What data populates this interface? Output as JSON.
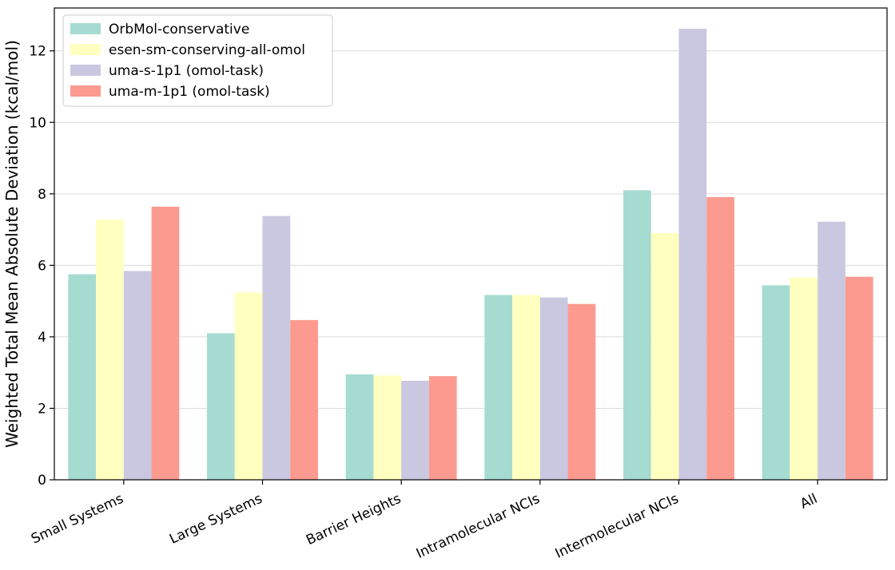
{
  "chart_data": {
    "type": "bar",
    "ylabel": "Weighted Total Mean Absolute Deviation (kcal/mol)",
    "xlabel": "",
    "ylim": [
      0,
      13.2
    ],
    "yticks": [
      0,
      2,
      4,
      6,
      8,
      10,
      12
    ],
    "grid": "horizontal",
    "legend_position": "top-left",
    "categories": [
      "Small Systems",
      "Large Systems",
      "Barrier Heights",
      "Intramolecular NCIs",
      "Intermolecular NCIs",
      "All"
    ],
    "series": [
      {
        "name": "OrbMol-conservative",
        "color": "#a6dbd1",
        "values": [
          5.75,
          4.1,
          2.95,
          5.17,
          8.1,
          5.44
        ]
      },
      {
        "name": "esen-sm-conserving-all-omol",
        "color": "#ffffbf",
        "values": [
          7.28,
          5.24,
          2.92,
          5.17,
          6.9,
          5.66
        ]
      },
      {
        "name": "uma-s-1p1 (omol-task)",
        "color": "#cac7e1",
        "values": [
          5.84,
          7.38,
          2.77,
          5.1,
          12.62,
          7.22
        ]
      },
      {
        "name": "uma-m-1p1 (omol-task)",
        "color": "#fc9a8f",
        "values": [
          7.64,
          4.47,
          2.9,
          4.92,
          7.91,
          5.68
        ]
      }
    ]
  }
}
